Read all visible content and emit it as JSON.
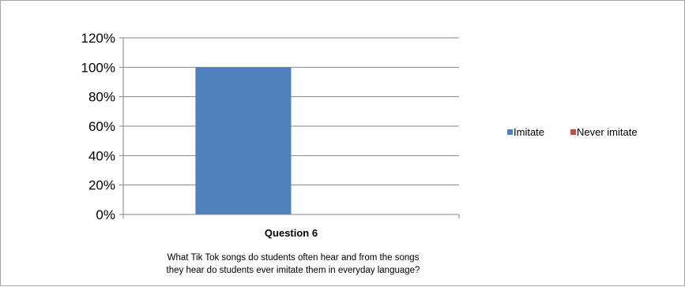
{
  "chart_data": {
    "type": "bar",
    "categories": [
      "Question 6"
    ],
    "series": [
      {
        "name": "Imitate",
        "values": [
          1.0
        ],
        "color": "#4f81bd"
      },
      {
        "name": "Never imitate",
        "values": [
          0.0
        ],
        "color": "#c0504d"
      }
    ],
    "y_ticks": [
      "0%",
      "20%",
      "40%",
      "60%",
      "80%",
      "100%",
      "120%"
    ],
    "ylim": [
      0,
      1.2
    ],
    "grid": true,
    "legend_position": "right",
    "caption_lines": [
      "What Tik Tok songs do students often hear and from the songs",
      "they hear do students ever imitate them in everyday language?"
    ]
  }
}
